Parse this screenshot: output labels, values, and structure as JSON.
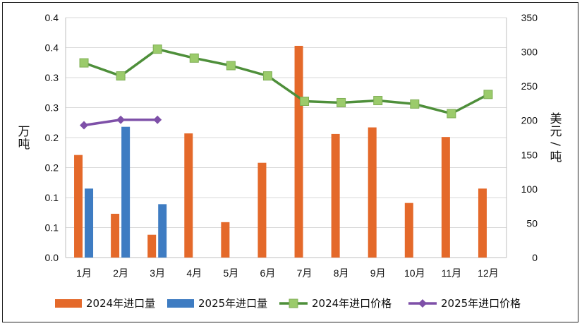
{
  "chart_data": {
    "type": "bar+line",
    "categories": [
      "1月",
      "2月",
      "3月",
      "4月",
      "5月",
      "6月",
      "7月",
      "8月",
      "9月",
      "10月",
      "11月",
      "12月"
    ],
    "left_axis": {
      "label": "万吨",
      "ticks": [
        "0.0",
        "0.1",
        "0.1",
        "0.2",
        "0.2",
        "0.3",
        "0.3",
        "0.4",
        "0.4"
      ],
      "ylim": [
        0,
        0.4
      ]
    },
    "right_axis": {
      "label": "美元/吨",
      "ticks": [
        "0",
        "50",
        "100",
        "150",
        "200",
        "250",
        "300",
        "350"
      ],
      "ylim": [
        0,
        350
      ]
    },
    "grid": true,
    "legend_position": "bottom",
    "series": [
      {
        "name": "2024年进口量",
        "type": "bar",
        "axis": "left",
        "color": "#E4692A",
        "values": [
          0.171,
          0.073,
          0.038,
          0.207,
          0.059,
          0.158,
          0.353,
          0.206,
          0.217,
          0.091,
          0.201,
          0.115
        ]
      },
      {
        "name": "2025年进口量",
        "type": "bar",
        "axis": "left",
        "color": "#3E7CC2",
        "values": [
          0.115,
          0.218,
          0.089,
          null,
          null,
          null,
          null,
          null,
          null,
          null,
          null,
          null
        ]
      },
      {
        "name": "2024年进口价格",
        "type": "line",
        "axis": "right",
        "color": "#4E8F3A",
        "marker_color": "#9BCB6B",
        "values": [
          284,
          265,
          304,
          291,
          280,
          265,
          228,
          226,
          229,
          224,
          210,
          238
        ]
      },
      {
        "name": "2025年进口价格",
        "type": "line",
        "axis": "right",
        "color": "#7E50A8",
        "marker_color": "#7E50A8",
        "values": [
          193,
          201,
          201,
          null,
          null,
          null,
          null,
          null,
          null,
          null,
          null,
          null
        ]
      }
    ]
  }
}
